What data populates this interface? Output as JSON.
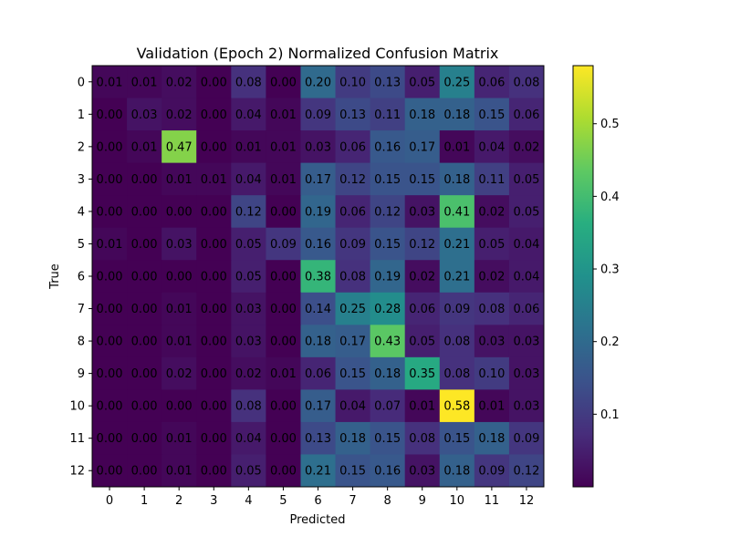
{
  "chart_data": {
    "type": "heatmap",
    "title": "Validation (Epoch 2) Normalized Confusion Matrix",
    "xlabel": "Predicted",
    "ylabel": "True",
    "x_categories": [
      "0",
      "1",
      "2",
      "3",
      "4",
      "5",
      "6",
      "7",
      "8",
      "9",
      "10",
      "11",
      "12"
    ],
    "y_categories": [
      "0",
      "1",
      "2",
      "3",
      "4",
      "5",
      "6",
      "7",
      "8",
      "9",
      "10",
      "11",
      "12"
    ],
    "values": [
      [
        0.01,
        0.01,
        0.02,
        0.0,
        0.08,
        0.0,
        0.2,
        0.1,
        0.13,
        0.05,
        0.25,
        0.06,
        0.08
      ],
      [
        0.0,
        0.03,
        0.02,
        0.0,
        0.04,
        0.01,
        0.09,
        0.13,
        0.11,
        0.18,
        0.18,
        0.15,
        0.06
      ],
      [
        0.0,
        0.01,
        0.47,
        0.0,
        0.01,
        0.01,
        0.03,
        0.06,
        0.16,
        0.17,
        0.01,
        0.04,
        0.02
      ],
      [
        0.0,
        0.0,
        0.01,
        0.01,
        0.04,
        0.01,
        0.17,
        0.12,
        0.15,
        0.15,
        0.18,
        0.11,
        0.05
      ],
      [
        0.0,
        0.0,
        0.0,
        0.0,
        0.12,
        0.0,
        0.19,
        0.06,
        0.12,
        0.03,
        0.41,
        0.02,
        0.05
      ],
      [
        0.01,
        0.0,
        0.03,
        0.0,
        0.05,
        0.09,
        0.16,
        0.09,
        0.15,
        0.12,
        0.21,
        0.05,
        0.04
      ],
      [
        0.0,
        0.0,
        0.0,
        0.0,
        0.05,
        0.0,
        0.38,
        0.08,
        0.19,
        0.02,
        0.21,
        0.02,
        0.04
      ],
      [
        0.0,
        0.0,
        0.01,
        0.0,
        0.03,
        0.0,
        0.14,
        0.25,
        0.28,
        0.06,
        0.09,
        0.08,
        0.06
      ],
      [
        0.0,
        0.0,
        0.01,
        0.0,
        0.03,
        0.0,
        0.18,
        0.17,
        0.43,
        0.05,
        0.08,
        0.03,
        0.03
      ],
      [
        0.0,
        0.0,
        0.02,
        0.0,
        0.02,
        0.01,
        0.06,
        0.15,
        0.18,
        0.35,
        0.08,
        0.1,
        0.03
      ],
      [
        0.0,
        0.0,
        0.0,
        0.0,
        0.08,
        0.0,
        0.17,
        0.04,
        0.07,
        0.01,
        0.58,
        0.01,
        0.03
      ],
      [
        0.0,
        0.0,
        0.01,
        0.0,
        0.04,
        0.0,
        0.13,
        0.18,
        0.15,
        0.08,
        0.15,
        0.18,
        0.09
      ],
      [
        0.0,
        0.0,
        0.01,
        0.0,
        0.05,
        0.0,
        0.21,
        0.15,
        0.16,
        0.03,
        0.18,
        0.09,
        0.12
      ]
    ],
    "colormap": "viridis",
    "vmin": 0.0,
    "vmax": 0.58,
    "colorbar_ticks": [
      0.1,
      0.2,
      0.3,
      0.4,
      0.5
    ],
    "colorbar_tick_labels": [
      "0.1",
      "0.2",
      "0.3",
      "0.4",
      "0.5"
    ],
    "grid": false,
    "legend": "colorbar-right"
  }
}
